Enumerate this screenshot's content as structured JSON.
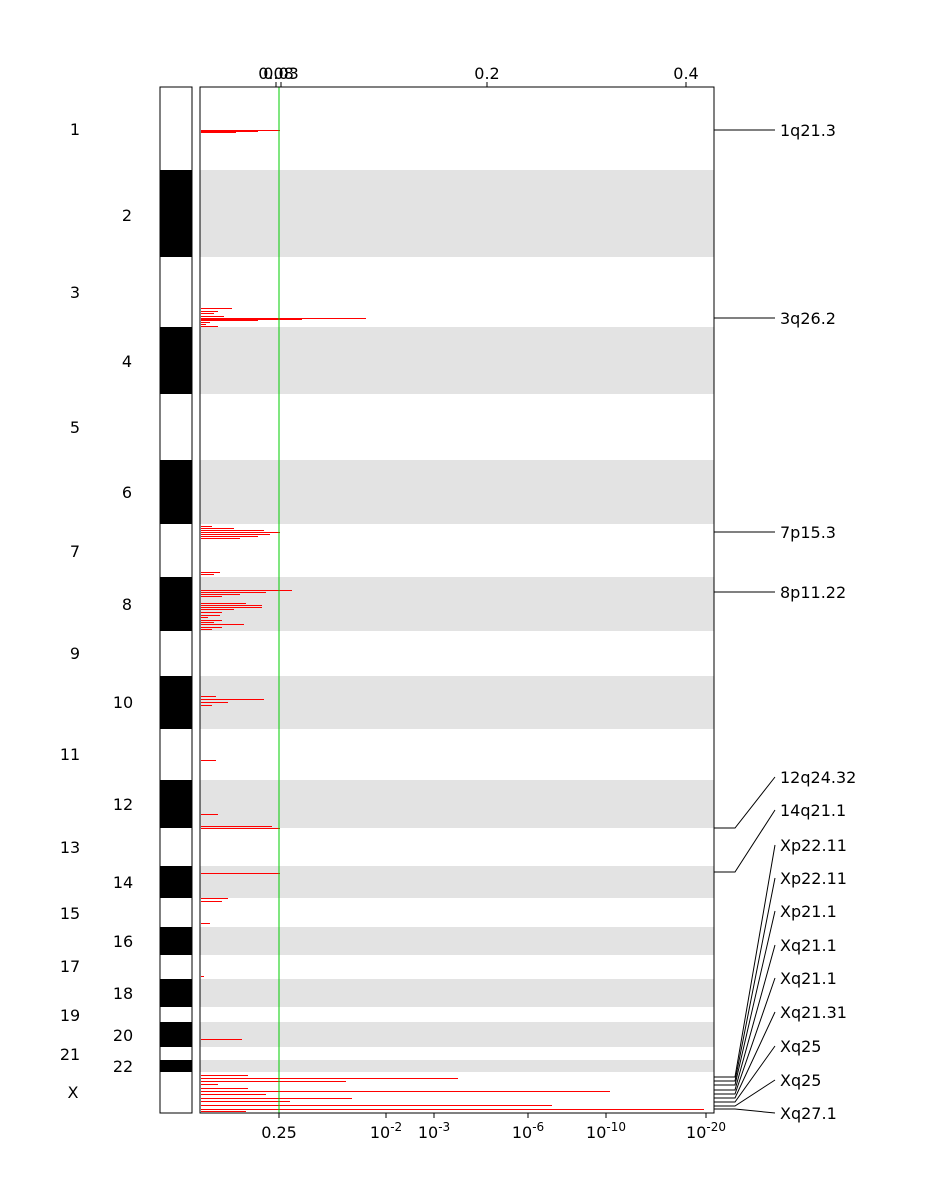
{
  "chart_data": {
    "type": "genome-plot",
    "top_axis": {
      "ticks": [
        "0.08",
        "0.03",
        "0.2",
        "0.4"
      ]
    },
    "bottom_axis": {
      "ticks": [
        {
          "base": "0.25",
          "exp": ""
        },
        {
          "base": "10",
          "exp": "-2"
        },
        {
          "base": "10",
          "exp": "-3"
        },
        {
          "base": "10",
          "exp": "-6"
        },
        {
          "base": "10",
          "exp": "-10"
        },
        {
          "base": "10",
          "exp": "-20"
        }
      ]
    },
    "threshold": 0.25,
    "threshold_color": "#00cc00",
    "bar_color": "#ff0000",
    "band_color": "#e3e3e3",
    "chromosomes": [
      {
        "label": "1",
        "dark": false
      },
      {
        "label": "2",
        "dark": true
      },
      {
        "label": "3",
        "dark": false
      },
      {
        "label": "4",
        "dark": true
      },
      {
        "label": "5",
        "dark": false
      },
      {
        "label": "6",
        "dark": true
      },
      {
        "label": "7",
        "dark": false
      },
      {
        "label": "8",
        "dark": true
      },
      {
        "label": "9",
        "dark": false
      },
      {
        "label": "10",
        "dark": true
      },
      {
        "label": "11",
        "dark": false
      },
      {
        "label": "12",
        "dark": true
      },
      {
        "label": "13",
        "dark": false
      },
      {
        "label": "14",
        "dark": true
      },
      {
        "label": "15",
        "dark": false
      },
      {
        "label": "16",
        "dark": true
      },
      {
        "label": "17",
        "dark": false
      },
      {
        "label": "18",
        "dark": true
      },
      {
        "label": "19",
        "dark": false
      },
      {
        "label": "20",
        "dark": true
      },
      {
        "label": "21",
        "dark": false
      },
      {
        "label": "22",
        "dark": true
      },
      {
        "label": "X",
        "dark": false
      }
    ],
    "peaks": [
      {
        "label": "1q21.3"
      },
      {
        "label": "3q26.2"
      },
      {
        "label": "7p15.3"
      },
      {
        "label": "8p11.22"
      },
      {
        "label": "12q24.32"
      },
      {
        "label": "14q21.1"
      },
      {
        "label": "Xp22.11"
      },
      {
        "label": "Xp22.11"
      },
      {
        "label": "Xp21.1"
      },
      {
        "label": "Xq21.1"
      },
      {
        "label": "Xq21.1"
      },
      {
        "label": "Xq21.31"
      },
      {
        "label": "Xq25"
      },
      {
        "label": "Xq25"
      },
      {
        "label": "Xq27.1"
      }
    ]
  }
}
